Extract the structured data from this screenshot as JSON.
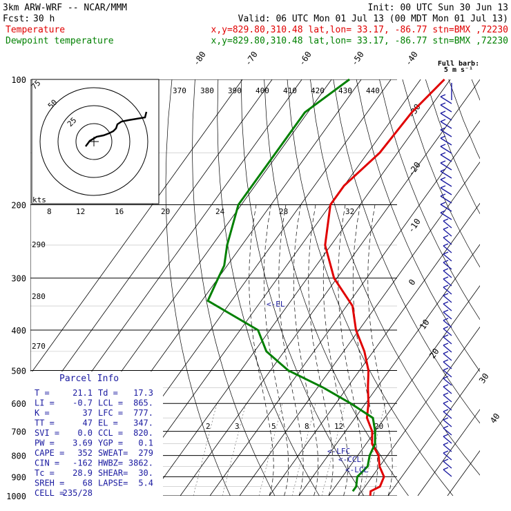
{
  "header": {
    "model": "3km ARW-WRF -- NCAR/MMM",
    "init": "Init: 00 UTC Sun 30 Jun 13",
    "fcst_label": "Fcst:",
    "fcst_value": "30 h",
    "valid": "Valid: 06 UTC Mon 01 Jul 13 (00 MDT Mon 01 Jul 13)",
    "temp_name": "Temperature",
    "dew_name": "Dewpoint temperature",
    "location": "x,y=829.80,310.48   lat,lon= 33.17, -86.77   stn=BMX ,72230"
  },
  "barb_legend": {
    "line1": "Full barb:",
    "line2": "5 m s⁻¹"
  },
  "hodograph": {
    "units": "kts",
    "ring_labels": [
      "75",
      "50",
      "25"
    ]
  },
  "parcel_info": {
    "title": "Parcel Info",
    "rows": [
      [
        "T  =",
        "21.1",
        "Td =",
        "17.3"
      ],
      [
        "LI =",
        "-0.7",
        "LCL =",
        "865."
      ],
      [
        "K  =",
        "37",
        "LFC =",
        "777."
      ],
      [
        "TT =",
        "47",
        "EL =",
        "347."
      ],
      [
        "SVI =",
        "0.0",
        "CCL =",
        "820."
      ],
      [
        "PW =",
        "3.69",
        "YGP =",
        "0.1"
      ],
      [
        "CAPE =",
        "352",
        "SWEAT=",
        "279"
      ],
      [
        "CIN =",
        "-162",
        "HWBZ=",
        "3862."
      ],
      [
        "Tc =",
        "28.9",
        "SHEAR=",
        "30."
      ],
      [
        "SREH =",
        "68",
        "LAPSE=",
        "5.4"
      ],
      [
        "CELL =",
        "235/28",
        "",
        ""
      ]
    ]
  },
  "levels": {
    "el": "<-EL",
    "lfc": "<-LFC",
    "ccl": "<-CCL",
    "lcl": "<-LCL"
  },
  "colors": {
    "temperature": "#e00000",
    "dewpoint": "#008000",
    "isotherm": "#000000",
    "barb": "#1a1aa0"
  },
  "chart_data": {
    "type": "line",
    "xlabel": "",
    "ylabel": "",
    "pressure_ticks": [
      100,
      200,
      300,
      400,
      500,
      600,
      700,
      800,
      900,
      1000
    ],
    "isotherm_labels": [
      "-80",
      "-70",
      "-60",
      "-50",
      "-40",
      "-30",
      "-20",
      "-10",
      "0",
      "10",
      "20",
      "30",
      "40"
    ],
    "theta_labels": [
      "370",
      "380",
      "390",
      "400",
      "410",
      "420",
      "430",
      "440"
    ],
    "theta_left_labels": [
      "290",
      "280",
      "270"
    ],
    "mixing_ratio_labels": [
      "2",
      "3",
      "5",
      "8",
      "12",
      "20"
    ],
    "hodo_speed_labels": [
      "8",
      "12",
      "16",
      "20",
      "24",
      "28",
      "32"
    ],
    "series": [
      {
        "name": "Temperature",
        "color": "#e00000",
        "points": [
          [
            100,
            -52
          ],
          [
            120,
            -55
          ],
          [
            150,
            -56
          ],
          [
            180,
            -60
          ],
          [
            200,
            -60
          ],
          [
            250,
            -52
          ],
          [
            300,
            -41
          ],
          [
            350,
            -28
          ],
          [
            400,
            -21
          ],
          [
            450,
            -13
          ],
          [
            500,
            -7
          ],
          [
            550,
            -3
          ],
          [
            600,
            1
          ],
          [
            650,
            4
          ],
          [
            700,
            9
          ],
          [
            750,
            12
          ],
          [
            800,
            17
          ],
          [
            850,
            20
          ],
          [
            900,
            24
          ],
          [
            950,
            25
          ],
          [
            975,
            23
          ],
          [
            1000,
            24
          ]
        ]
      },
      {
        "name": "Dewpoint temperature",
        "color": "#008000",
        "points": [
          [
            100,
            -84
          ],
          [
            120,
            -91
          ],
          [
            150,
            -91
          ],
          [
            200,
            -91
          ],
          [
            250,
            -85
          ],
          [
            280,
            -81
          ],
          [
            300,
            -80
          ],
          [
            340,
            -78
          ],
          [
            400,
            -54
          ],
          [
            450,
            -46
          ],
          [
            500,
            -34
          ],
          [
            550,
            -18
          ],
          [
            600,
            -5
          ],
          [
            650,
            6
          ],
          [
            700,
            10
          ],
          [
            750,
            13
          ],
          [
            800,
            14
          ],
          [
            850,
            16
          ],
          [
            900,
            15
          ],
          [
            950,
            17
          ],
          [
            975,
            17
          ]
        ]
      }
    ]
  }
}
